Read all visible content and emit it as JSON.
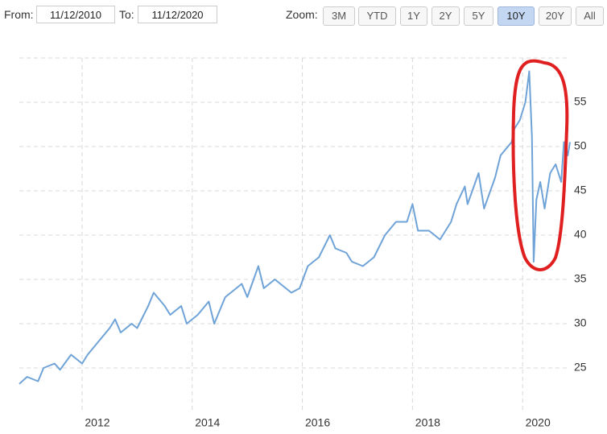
{
  "ui": {
    "from_label": "From:",
    "from_value": "11/12/2010",
    "to_label": "To:",
    "to_value": "11/12/2020",
    "zoom_label": "Zoom:",
    "zoom_buttons": [
      "3M",
      "YTD",
      "1Y",
      "2Y",
      "5Y",
      "10Y",
      "20Y",
      "All"
    ],
    "active_zoom": 5
  },
  "chart_data": {
    "type": "line",
    "color": "#6fa3d8",
    "grid": true,
    "x": [
      2010.86,
      2011.0,
      2011.2,
      2011.3,
      2011.5,
      2011.6,
      2011.8,
      2012.0,
      2012.1,
      2012.3,
      2012.5,
      2012.6,
      2012.7,
      2012.9,
      2013.0,
      2013.2,
      2013.3,
      2013.5,
      2013.6,
      2013.8,
      2013.9,
      2014.1,
      2014.3,
      2014.4,
      2014.6,
      2014.8,
      2014.9,
      2015.0,
      2015.2,
      2015.3,
      2015.5,
      2015.7,
      2015.8,
      2015.95,
      2016.1,
      2016.3,
      2016.5,
      2016.6,
      2016.8,
      2016.9,
      2017.1,
      2017.3,
      2017.5,
      2017.7,
      2017.9,
      2018.0,
      2018.1,
      2018.3,
      2018.5,
      2018.7,
      2018.8,
      2018.95,
      2019.0,
      2019.2,
      2019.3,
      2019.5,
      2019.6,
      2019.8,
      2019.85,
      2019.95,
      2020.05,
      2020.12,
      2020.17,
      2020.2,
      2020.25,
      2020.32,
      2020.4,
      2020.5,
      2020.6,
      2020.7,
      2020.75,
      2020.82,
      2020.86
    ],
    "values": [
      23.2,
      24,
      23.5,
      25,
      25.5,
      24.8,
      26.5,
      25.5,
      26.5,
      28,
      29.5,
      30.5,
      29,
      30,
      29.5,
      32,
      33.5,
      32,
      31,
      32,
      30,
      31,
      32.5,
      30,
      33,
      34,
      34.5,
      33,
      36.5,
      34,
      35,
      34,
      33.5,
      34,
      36.5,
      37.5,
      40,
      38.5,
      38,
      37,
      36.5,
      37.5,
      40,
      41.5,
      41.5,
      43.5,
      40.5,
      40.5,
      39.5,
      41.5,
      43.5,
      45.5,
      43.5,
      47,
      43,
      46.5,
      49,
      50.5,
      52,
      53,
      55,
      58.5,
      51,
      37,
      44,
      46,
      43,
      47,
      48,
      46,
      50.5,
      49,
      50.5
    ],
    "xlim": [
      2010.86,
      2020.86
    ],
    "xticks": [
      2012,
      2014,
      2016,
      2018,
      2020
    ],
    "ylim": [
      20,
      60
    ],
    "yticks": [
      25,
      30,
      35,
      40,
      45,
      50,
      55
    ]
  }
}
